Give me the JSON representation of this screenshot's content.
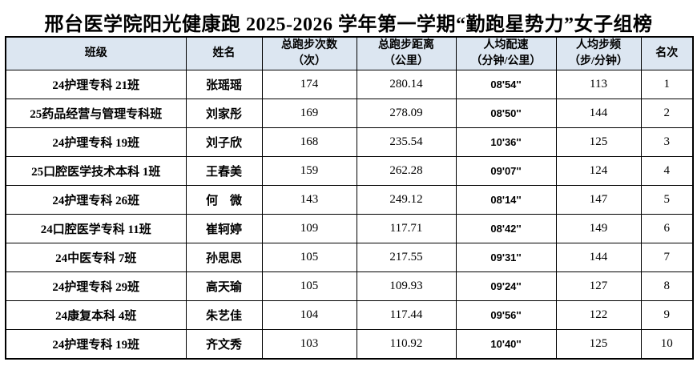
{
  "title": "邢台医学院阳光健康跑 2025-2026 学年第一学期“勤跑星势力”女子组榜",
  "colors": {
    "header_bg": "#dce6f1",
    "border": "#000000",
    "page_bg": "#ffffff",
    "text": "#000000"
  },
  "table": {
    "fields": [
      "class_name",
      "name",
      "runs",
      "distance",
      "pace",
      "cadence",
      "rank"
    ],
    "headers": {
      "class_name": "班级",
      "name": "姓名",
      "runs": "总跑步次数\n（次）",
      "distance": "总跑步距离\n（公里）",
      "pace": "人均配速\n（分钟/公里）",
      "cadence": "人均步频\n（步/分钟）",
      "rank": "名次"
    },
    "rows": [
      {
        "class_name": "24护理专科 21班",
        "name": "张瑶瑶",
        "runs": "174",
        "distance": "280.14",
        "pace": "08'54''",
        "cadence": "113",
        "rank": "1"
      },
      {
        "class_name": "25药品经营与管理专科班",
        "name": "刘家彤",
        "runs": "169",
        "distance": "278.09",
        "pace": "08'50''",
        "cadence": "144",
        "rank": "2"
      },
      {
        "class_name": "24护理专科 19班",
        "name": "刘子欣",
        "runs": "168",
        "distance": "235.54",
        "pace": "10'36''",
        "cadence": "125",
        "rank": "3"
      },
      {
        "class_name": "25口腔医学技术本科 1班",
        "name": "王春美",
        "runs": "159",
        "distance": "262.28",
        "pace": "09'07''",
        "cadence": "124",
        "rank": "4"
      },
      {
        "class_name": "24护理专科 26班",
        "name": "何　微",
        "runs": "143",
        "distance": "249.12",
        "pace": "08'14''",
        "cadence": "147",
        "rank": "5"
      },
      {
        "class_name": "24口腔医学专科 11班",
        "name": "崔轲婷",
        "runs": "109",
        "distance": "117.71",
        "pace": "08'42''",
        "cadence": "149",
        "rank": "6"
      },
      {
        "class_name": "24中医专科 7班",
        "name": "孙思思",
        "runs": "105",
        "distance": "217.55",
        "pace": "09'31''",
        "cadence": "144",
        "rank": "7"
      },
      {
        "class_name": "24护理专科 29班",
        "name": "高天瑜",
        "runs": "105",
        "distance": "109.93",
        "pace": "09'24''",
        "cadence": "127",
        "rank": "8"
      },
      {
        "class_name": "24康复本科 4班",
        "name": "朱艺佳",
        "runs": "104",
        "distance": "117.44",
        "pace": "09'56''",
        "cadence": "122",
        "rank": "9"
      },
      {
        "class_name": "24护理专科 19班",
        "name": "齐文秀",
        "runs": "103",
        "distance": "110.92",
        "pace": "10'40''",
        "cadence": "125",
        "rank": "10"
      }
    ]
  }
}
